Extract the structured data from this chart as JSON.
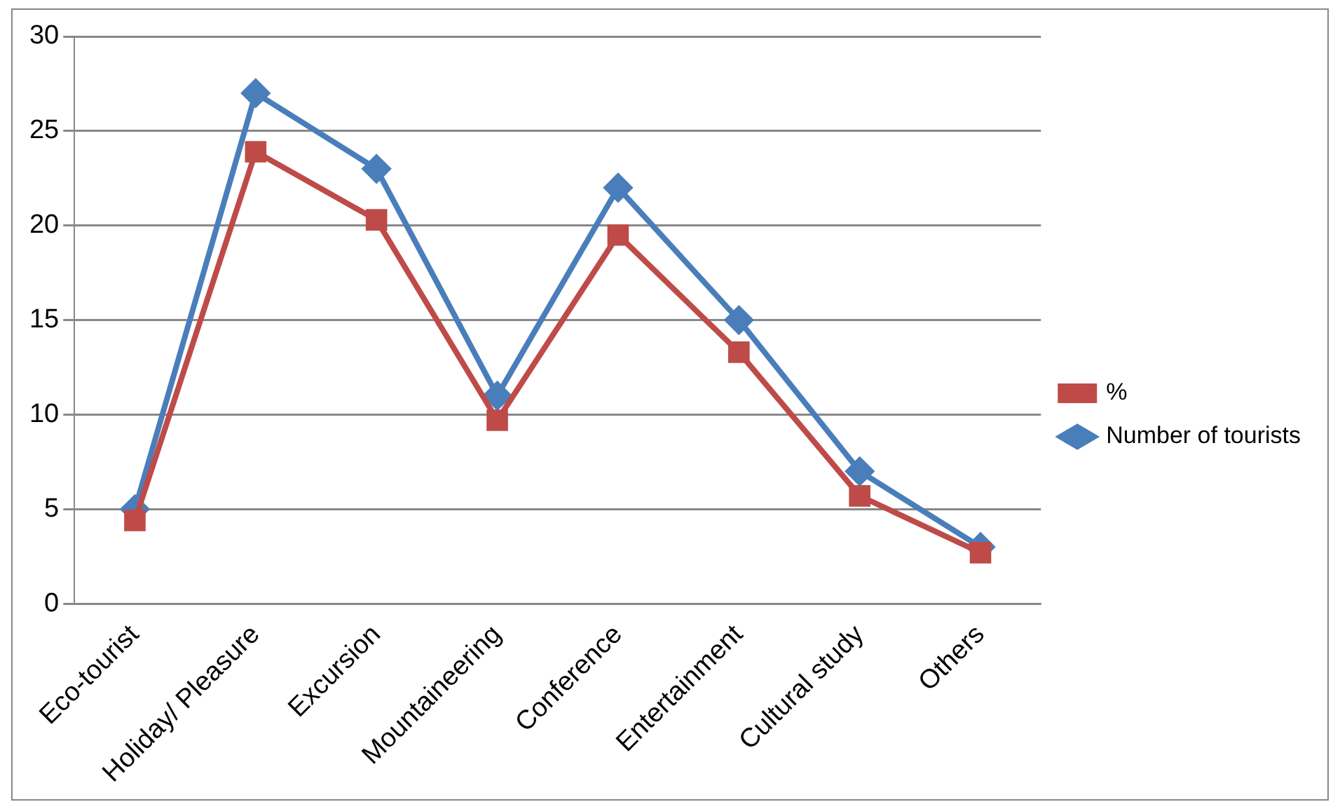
{
  "chart_data": {
    "type": "line",
    "categories": [
      "Eco-tourist",
      "Holiday/ Pleasure",
      "Excursion",
      "Mountaineering",
      "Conference",
      "Entertainment",
      "Cultural study",
      "Others"
    ],
    "series": [
      {
        "name": "Number of tourists",
        "color": "#4a7ebb",
        "marker": "diamond",
        "values": [
          5,
          27,
          23,
          11,
          22,
          15,
          7,
          3
        ]
      },
      {
        "name": "%",
        "color": "#be4b48",
        "marker": "square",
        "values": [
          4.4,
          23.9,
          20.3,
          9.7,
          19.5,
          13.3,
          5.7,
          2.7
        ]
      }
    ],
    "ylim": [
      0,
      30
    ],
    "yticks": [
      0,
      5,
      10,
      15,
      20,
      25,
      30
    ],
    "grid": "y",
    "legend": "right",
    "line_style": "solid"
  }
}
